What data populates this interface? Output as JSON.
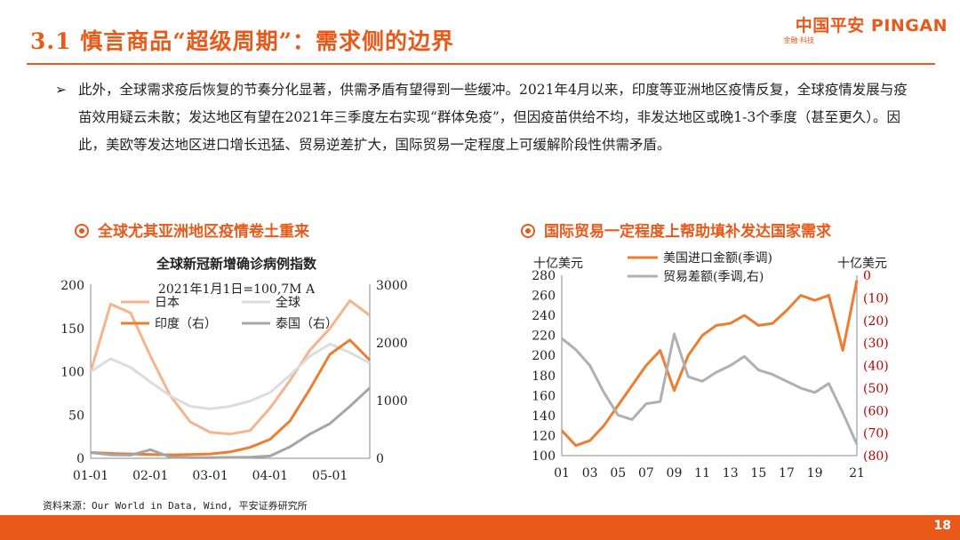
{
  "title": "3.1 慎言商品“超级周期”：需求侧的边界",
  "brand": {
    "name": "中国平安 PINGAN",
    "tagline": "金融·科技",
    "color": "#e8591a"
  },
  "bullet": {
    "arrow": "➢",
    "text": "此外，全球需求疫后恢复的节奏分化显著，供需矛盾有望得到一些缓冲。2021年4月以来，印度等亚洲地区疫情反复，全球疫情发展与疫苗效用疑云未散；发达地区有望在2021年三季度左右实现“群体免疫”，但因疫苗供给不均，非发达地区或晚1-3个季度（甚至更久）。因此，美欧等发达地区进口增长迅猛、贸易逆差扩大，国际贸易一定程度上可缓解阶段性供需矛盾。"
  },
  "left_subtitle": "全球尤其亚洲地区疫情卷土重来",
  "right_subtitle": "国际贸易一定程度上帮助填补发达国家需求",
  "source": "资料来源：Our World in Data, Wind, 平安证券研究所",
  "page_number": "18",
  "chart_data": [
    {
      "type": "line",
      "title": "全球新冠新增确诊病例指数",
      "subtitle": "2021年1月1日=100,7M A",
      "x": [
        "01-01",
        "01-10",
        "01-20",
        "02-01",
        "02-10",
        "02-20",
        "03-01",
        "03-10",
        "03-20",
        "04-01",
        "04-10",
        "04-20",
        "05-01",
        "05-10",
        "05-15"
      ],
      "xticks": [
        "01-01",
        "02-01",
        "03-01",
        "04-01",
        "05-01"
      ],
      "ylim_left": [
        0,
        200
      ],
      "yticks_left": [
        0,
        50,
        100,
        150,
        200
      ],
      "ylim_right": [
        0,
        3000
      ],
      "yticks_right": [
        0,
        1000,
        2000,
        3000
      ],
      "series": [
        {
          "name": "日本",
          "axis": "left",
          "color": "#f6b48a",
          "width": 3,
          "values": [
            100,
            178,
            168,
            118,
            72,
            42,
            30,
            28,
            32,
            58,
            90,
            125,
            150,
            182,
            165
          ]
        },
        {
          "name": "全球",
          "axis": "left",
          "color": "#dcdcdc",
          "width": 3,
          "values": [
            100,
            115,
            105,
            88,
            72,
            60,
            57,
            60,
            66,
            76,
            96,
            118,
            132,
            122,
            110
          ]
        },
        {
          "name": "印度（右）",
          "axis": "right",
          "color": "#ed7d31",
          "width": 3,
          "values": [
            100,
            85,
            75,
            65,
            60,
            65,
            75,
            110,
            190,
            330,
            650,
            1200,
            1800,
            2050,
            1700
          ]
        },
        {
          "name": "泰国（右）",
          "axis": "right",
          "color": "#a6a6a6",
          "width": 3,
          "values": [
            100,
            60,
            55,
            150,
            20,
            10,
            10,
            15,
            20,
            40,
            200,
            420,
            600,
            900,
            1220
          ]
        }
      ]
    },
    {
      "type": "line",
      "title": "",
      "ylabel_left": "十亿美元",
      "ylabel_right": "十亿美元",
      "x": [
        "01",
        "02",
        "03",
        "04",
        "05",
        "06",
        "07",
        "08",
        "09",
        "10",
        "11",
        "12",
        "13",
        "14",
        "15",
        "16",
        "17",
        "18",
        "19",
        "20",
        "20.6",
        "21"
      ],
      "xticks": [
        "01",
        "03",
        "05",
        "07",
        "09",
        "11",
        "13",
        "15",
        "17",
        "19",
        "21"
      ],
      "ylim_left": [
        100,
        280
      ],
      "yticks_left": [
        100,
        120,
        140,
        160,
        180,
        200,
        220,
        240,
        260,
        280
      ],
      "ylim_right": [
        -80,
        0
      ],
      "yticks_right": [
        "(80)",
        "(70)",
        "(60)",
        "(50)",
        "(40)",
        "(30)",
        "(20)",
        "(10)",
        "0"
      ],
      "series": [
        {
          "name": "美国进口金额(季调)",
          "axis": "left",
          "color": "#ed7d31",
          "width": 3,
          "values": [
            125,
            110,
            115,
            130,
            150,
            170,
            190,
            205,
            165,
            200,
            220,
            230,
            232,
            240,
            230,
            232,
            245,
            260,
            255,
            260,
            205,
            275
          ]
        },
        {
          "name": "贸易差额(季调,右)",
          "axis": "right",
          "color": "#b0b0b0",
          "width": 3,
          "values": [
            -28,
            -33,
            -40,
            -52,
            -62,
            -64,
            -57,
            -56,
            -26,
            -45,
            -47,
            -43,
            -40,
            -36,
            -42,
            -44,
            -47,
            -50,
            -52,
            -48,
            -61,
            -75
          ]
        }
      ]
    }
  ]
}
